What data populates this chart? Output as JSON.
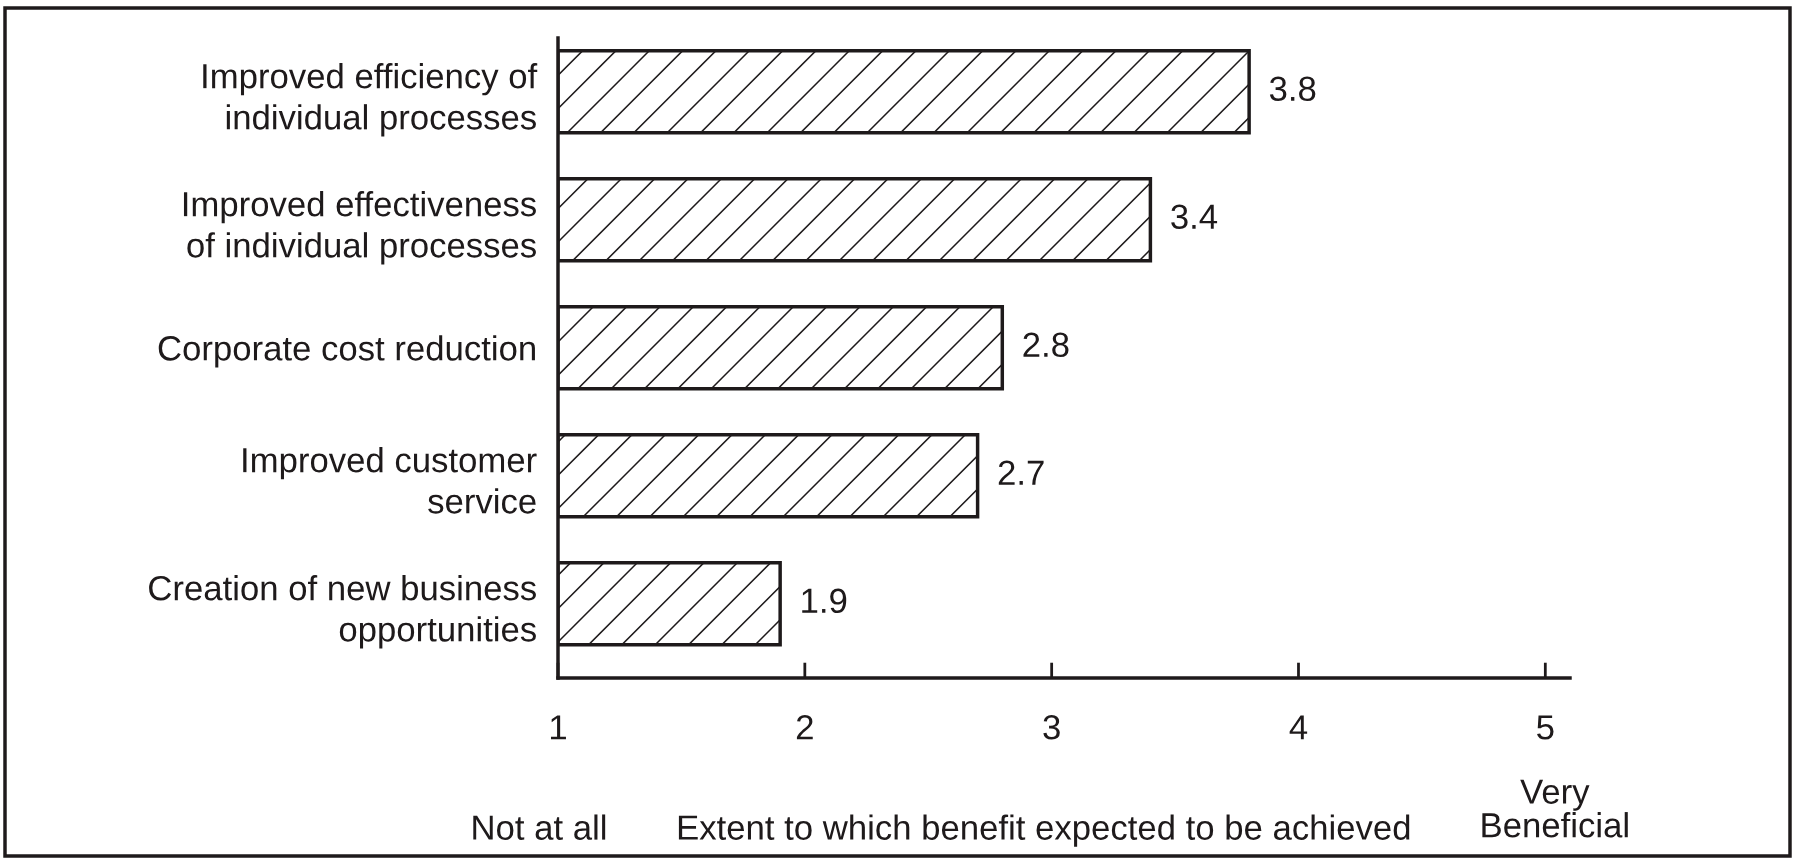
{
  "chart_data": {
    "type": "bar",
    "orientation": "horizontal",
    "categories": [
      "Improved efficiency of\nindividual processes",
      "Improved effectiveness\nof individual processes",
      "Corporate cost reduction",
      "Improved customer\nservice",
      "Creation of new business\nopportunities"
    ],
    "values": [
      3.8,
      3.4,
      2.8,
      2.7,
      1.9
    ],
    "color": "#1e1a1b",
    "xlim": [
      1,
      5.1
    ],
    "xticks": [
      1,
      2,
      3,
      4,
      5
    ],
    "xlabel": "Extent to which benefit expected to be achieved",
    "annotations": [
      "Not at all",
      "Very\nBeneficial"
    ],
    "data_labels": true,
    "grid": false,
    "legend": false
  }
}
